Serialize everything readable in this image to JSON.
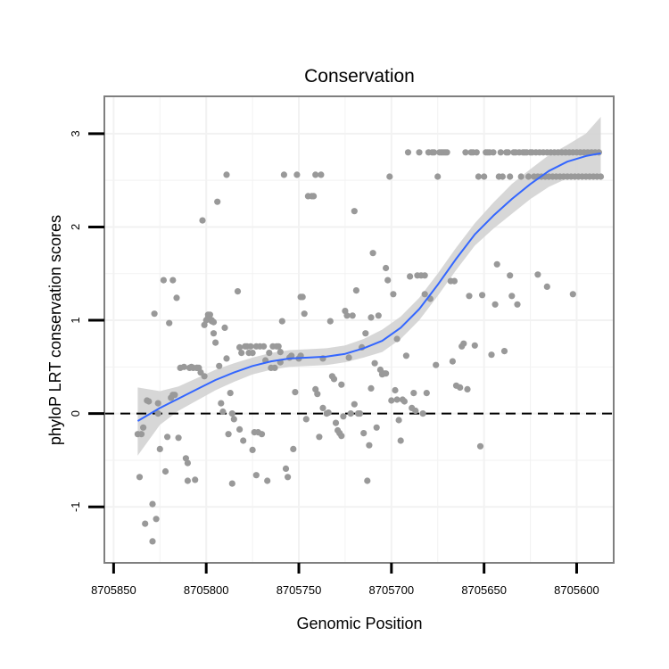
{
  "chart_data": {
    "type": "scatter",
    "title": "Conservation",
    "xlabel": "Genomic Position",
    "ylabel": "phyloP LRT conservation scores",
    "x_reversed": true,
    "xlim": [
      8705855,
      8705580
    ],
    "ylim": [
      -1.6,
      3.4
    ],
    "x_ticks": [
      8705850,
      8705800,
      8705750,
      8705700,
      8705650,
      8705600
    ],
    "x_tick_labels": [
      "8705850",
      "8705800",
      "8705750",
      "8705700",
      "8705650",
      "8705600"
    ],
    "y_ticks": [
      -1,
      0,
      1,
      2,
      3
    ],
    "y_tick_labels": [
      "-1",
      "0",
      "1",
      "2",
      "3"
    ],
    "grid": true,
    "reference_line": {
      "y": 0,
      "style": "dashed",
      "color": "#000000"
    },
    "colors": {
      "points": "#999999",
      "smooth": "#3366ff",
      "band": "#d3d3d3",
      "panel_border": "#7f7f7f",
      "grid": "#f2f2f2"
    },
    "points": [
      [
        8705837,
        -0.22
      ],
      [
        8705836,
        -0.68
      ],
      [
        8705835,
        -0.22
      ],
      [
        8705834,
        -0.15
      ],
      [
        8705833,
        -1.18
      ],
      [
        8705832,
        0.14
      ],
      [
        8705831,
        0.13
      ],
      [
        8705829,
        -0.97
      ],
      [
        8705829,
        -1.37
      ],
      [
        8705828,
        1.07
      ],
      [
        8705827,
        -1.13
      ],
      [
        8705826,
        0.0
      ],
      [
        8705826,
        0.11
      ],
      [
        8705825,
        -0.38
      ],
      [
        8705823,
        1.43
      ],
      [
        8705822,
        -0.62
      ],
      [
        8705821,
        -0.25
      ],
      [
        8705820,
        0.97
      ],
      [
        8705819,
        0.17
      ],
      [
        8705818,
        1.43
      ],
      [
        8705818,
        0.2
      ],
      [
        8705817,
        0.2
      ],
      [
        8705816,
        1.24
      ],
      [
        8705815,
        -0.26
      ],
      [
        8705814,
        0.49
      ],
      [
        8705812,
        0.5
      ],
      [
        8705811,
        -0.48
      ],
      [
        8705810,
        -0.53
      ],
      [
        8705810,
        -0.72
      ],
      [
        8705809,
        0.49
      ],
      [
        8705808,
        0.5
      ],
      [
        8705807,
        0.49
      ],
      [
        8705806,
        -0.71
      ],
      [
        8705805,
        0.49
      ],
      [
        8705805,
        0.49
      ],
      [
        8705804,
        0.49
      ],
      [
        8705803,
        0.44
      ],
      [
        8705802,
        2.07
      ],
      [
        8705801,
        0.4
      ],
      [
        8705801,
        0.95
      ],
      [
        8705800,
        1.0
      ],
      [
        8705799,
        1.03
      ],
      [
        8705799,
        1.06
      ],
      [
        8705798,
        1.06
      ],
      [
        8705797,
        0.99
      ],
      [
        8705797,
        1.0
      ],
      [
        8705796,
        0.98
      ],
      [
        8705796,
        0.86
      ],
      [
        8705795,
        0.76
      ],
      [
        8705794,
        2.27
      ],
      [
        8705793,
        0.51
      ],
      [
        8705792,
        0.11
      ],
      [
        8705791,
        0.02
      ],
      [
        8705790,
        0.92
      ],
      [
        8705789,
        2.56
      ],
      [
        8705789,
        0.59
      ],
      [
        8705788,
        -0.22
      ],
      [
        8705787,
        0.22
      ],
      [
        8705786,
        -0.75
      ],
      [
        8705786,
        0.0
      ],
      [
        8705785,
        -0.06
      ],
      [
        8705783,
        1.31
      ],
      [
        8705782,
        0.71
      ],
      [
        8705782,
        -0.17
      ],
      [
        8705781,
        0.65
      ],
      [
        8705780,
        -0.29
      ],
      [
        8705779,
        0.72
      ],
      [
        8705778,
        0.72
      ],
      [
        8705777,
        0.65
      ],
      [
        8705776,
        0.72
      ],
      [
        8705775,
        -0.39
      ],
      [
        8705775,
        0.65
      ],
      [
        8705774,
        -0.2
      ],
      [
        8705773,
        -0.66
      ],
      [
        8705773,
        0.72
      ],
      [
        8705772,
        -0.2
      ],
      [
        8705771,
        0.72
      ],
      [
        8705770,
        -0.22
      ],
      [
        8705769,
        0.72
      ],
      [
        8705768,
        0.57
      ],
      [
        8705767,
        -0.72
      ],
      [
        8705766,
        0.65
      ],
      [
        8705765,
        0.49
      ],
      [
        8705764,
        0.72
      ],
      [
        8705763,
        0.49
      ],
      [
        8705762,
        0.72
      ],
      [
        8705761,
        0.72
      ],
      [
        8705760,
        0.66
      ],
      [
        8705760,
        0.55
      ],
      [
        8705759,
        0.99
      ],
      [
        8705758,
        2.56
      ],
      [
        8705757,
        -0.59
      ],
      [
        8705756,
        -0.68
      ],
      [
        8705755,
        0.6
      ],
      [
        8705754,
        0.62
      ],
      [
        8705753,
        -0.38
      ],
      [
        8705752,
        0.23
      ],
      [
        8705751,
        2.56
      ],
      [
        8705750,
        0.59
      ],
      [
        8705749,
        0.62
      ],
      [
        8705749,
        1.25
      ],
      [
        8705748,
        1.25
      ],
      [
        8705747,
        1.07
      ],
      [
        8705746,
        -0.06
      ],
      [
        8705745,
        2.33
      ],
      [
        8705743,
        2.33
      ],
      [
        8705742,
        2.33
      ],
      [
        8705741,
        2.56
      ],
      [
        8705741,
        0.26
      ],
      [
        8705740,
        0.21
      ],
      [
        8705739,
        -0.25
      ],
      [
        8705738,
        2.56
      ],
      [
        8705737,
        0.06
      ],
      [
        8705737,
        0.59
      ],
      [
        8705735,
        0.0
      ],
      [
        8705734,
        0.01
      ],
      [
        8705733,
        0.99
      ],
      [
        8705732,
        0.4
      ],
      [
        8705731,
        0.37
      ],
      [
        8705730,
        -0.1
      ],
      [
        8705729,
        -0.18
      ],
      [
        8705728,
        -0.21
      ],
      [
        8705727,
        -0.24
      ],
      [
        8705727,
        0.31
      ],
      [
        8705726,
        -0.03
      ],
      [
        8705725,
        1.1
      ],
      [
        8705724,
        1.05
      ],
      [
        8705723,
        0.6
      ],
      [
        8705722,
        0.0
      ],
      [
        8705721,
        1.05
      ],
      [
        8705720,
        0.1
      ],
      [
        8705720,
        2.17
      ],
      [
        8705719,
        1.32
      ],
      [
        8705718,
        0.0
      ],
      [
        8705717,
        0.0
      ],
      [
        8705716,
        0.71
      ],
      [
        8705715,
        -0.21
      ],
      [
        8705714,
        0.86
      ],
      [
        8705713,
        -0.72
      ],
      [
        8705712,
        -0.34
      ],
      [
        8705711,
        1.03
      ],
      [
        8705711,
        0.27
      ],
      [
        8705710,
        1.72
      ],
      [
        8705709,
        0.54
      ],
      [
        8705708,
        -0.15
      ],
      [
        8705707,
        1.05
      ],
      [
        8705706,
        0.47
      ],
      [
        8705705,
        0.42
      ],
      [
        8705704,
        0.43
      ],
      [
        8705703,
        1.56
      ],
      [
        8705703,
        0.43
      ],
      [
        8705702,
        1.43
      ],
      [
        8705701,
        2.54
      ],
      [
        8705700,
        0.14
      ],
      [
        8705699,
        1.28
      ],
      [
        8705698,
        0.25
      ],
      [
        8705697,
        0.8
      ],
      [
        8705697,
        0.15
      ],
      [
        8705696,
        -0.07
      ],
      [
        8705695,
        -0.29
      ],
      [
        8705694,
        0.15
      ],
      [
        8705693,
        0.13
      ],
      [
        8705692,
        0.62
      ],
      [
        8705691,
        2.8
      ],
      [
        8705690,
        1.47
      ],
      [
        8705689,
        0.06
      ],
      [
        8705688,
        0.22
      ],
      [
        8705687,
        0.03
      ],
      [
        8705686,
        1.48
      ],
      [
        8705685,
        2.8
      ],
      [
        8705684,
        1.48
      ],
      [
        8705683,
        0.0
      ],
      [
        8705682,
        1.48
      ],
      [
        8705682,
        1.28
      ],
      [
        8705681,
        0.22
      ],
      [
        8705680,
        2.8
      ],
      [
        8705679,
        1.23
      ],
      [
        8705678,
        2.8
      ],
      [
        8705677,
        2.8
      ],
      [
        8705676,
        0.52
      ],
      [
        8705675,
        2.54
      ],
      [
        8705674,
        2.8
      ],
      [
        8705673,
        2.8
      ],
      [
        8705672,
        2.8
      ],
      [
        8705671,
        2.8
      ],
      [
        8705670,
        2.8
      ],
      [
        8705668,
        1.42
      ],
      [
        8705667,
        0.56
      ],
      [
        8705666,
        1.42
      ],
      [
        8705665,
        0.3
      ],
      [
        8705663,
        0.28
      ],
      [
        8705662,
        0.72
      ],
      [
        8705661,
        0.75
      ],
      [
        8705660,
        2.8
      ],
      [
        8705659,
        0.26
      ],
      [
        8705658,
        1.26
      ],
      [
        8705657,
        2.8
      ],
      [
        8705656,
        2.8
      ],
      [
        8705655,
        0.73
      ],
      [
        8705654,
        2.8
      ],
      [
        8705653,
        2.54
      ],
      [
        8705652,
        -0.35
      ],
      [
        8705651,
        1.27
      ],
      [
        8705650,
        2.54
      ],
      [
        8705649,
        2.8
      ],
      [
        8705648,
        2.8
      ],
      [
        8705647,
        2.8
      ],
      [
        8705646,
        0.63
      ],
      [
        8705645,
        2.8
      ],
      [
        8705644,
        1.17
      ],
      [
        8705643,
        1.6
      ],
      [
        8705642,
        2.54
      ],
      [
        8705641,
        2.8
      ],
      [
        8705640,
        2.54
      ],
      [
        8705639,
        0.67
      ],
      [
        8705638,
        2.8
      ],
      [
        8705637,
        2.8
      ],
      [
        8705636,
        1.48
      ],
      [
        8705636,
        2.54
      ],
      [
        8705635,
        1.26
      ],
      [
        8705634,
        2.8
      ],
      [
        8705633,
        2.8
      ],
      [
        8705632,
        1.17
      ],
      [
        8705631,
        2.8
      ],
      [
        8705630,
        2.54
      ],
      [
        8705629,
        2.8
      ],
      [
        8705628,
        2.8
      ],
      [
        8705627,
        2.8
      ],
      [
        8705626,
        2.54
      ],
      [
        8705625,
        2.8
      ],
      [
        8705624,
        2.8
      ],
      [
        8705623,
        2.54
      ],
      [
        8705622,
        2.8
      ],
      [
        8705621,
        2.54
      ],
      [
        8705620,
        2.8
      ],
      [
        8705619,
        2.54
      ],
      [
        8705618,
        2.8
      ],
      [
        8705617,
        2.54
      ],
      [
        8705616,
        2.8
      ],
      [
        8705615,
        2.54
      ],
      [
        8705614,
        2.8
      ],
      [
        8705613,
        2.54
      ],
      [
        8705612,
        2.8
      ],
      [
        8705611,
        2.54
      ],
      [
        8705610,
        2.8
      ],
      [
        8705609,
        2.54
      ],
      [
        8705608,
        2.8
      ],
      [
        8705607,
        2.54
      ],
      [
        8705606,
        2.8
      ],
      [
        8705605,
        2.54
      ],
      [
        8705604,
        2.8
      ],
      [
        8705603,
        2.54
      ],
      [
        8705602,
        2.8
      ],
      [
        8705601,
        2.54
      ],
      [
        8705600,
        2.8
      ],
      [
        8705599,
        2.54
      ],
      [
        8705598,
        2.8
      ],
      [
        8705597,
        2.54
      ],
      [
        8705596,
        2.8
      ],
      [
        8705595,
        2.54
      ],
      [
        8705594,
        2.8
      ],
      [
        8705593,
        2.54
      ],
      [
        8705592,
        2.8
      ],
      [
        8705591,
        2.54
      ],
      [
        8705590,
        2.8
      ],
      [
        8705589,
        2.54
      ],
      [
        8705588,
        2.8
      ],
      [
        8705587,
        2.54
      ],
      [
        8705621,
        1.49
      ],
      [
        8705616,
        1.36
      ],
      [
        8705602,
        1.28
      ]
    ],
    "smooth": {
      "x": [
        8705837,
        8705825,
        8705815,
        8705805,
        8705795,
        8705785,
        8705775,
        8705765,
        8705755,
        8705745,
        8705735,
        8705725,
        8705715,
        8705705,
        8705695,
        8705685,
        8705675,
        8705665,
        8705655,
        8705645,
        8705635,
        8705625,
        8705615,
        8705605,
        8705595,
        8705587
      ],
      "y": [
        -0.08,
        0.06,
        0.16,
        0.26,
        0.36,
        0.44,
        0.51,
        0.56,
        0.59,
        0.6,
        0.61,
        0.64,
        0.7,
        0.78,
        0.92,
        1.12,
        1.38,
        1.66,
        1.92,
        2.12,
        2.3,
        2.46,
        2.6,
        2.7,
        2.76,
        2.79
      ],
      "lower": [
        -0.45,
        -0.12,
        0.03,
        0.14,
        0.25,
        0.34,
        0.42,
        0.47,
        0.5,
        0.51,
        0.52,
        0.55,
        0.6,
        0.66,
        0.8,
        1.0,
        1.26,
        1.54,
        1.8,
        1.98,
        2.14,
        2.3,
        2.43,
        2.52,
        2.56,
        2.55
      ],
      "upper": [
        0.28,
        0.24,
        0.29,
        0.38,
        0.47,
        0.54,
        0.6,
        0.65,
        0.68,
        0.69,
        0.7,
        0.73,
        0.8,
        0.9,
        1.04,
        1.24,
        1.5,
        1.78,
        2.04,
        2.26,
        2.46,
        2.62,
        2.77,
        2.88,
        3.0,
        3.18
      ]
    }
  }
}
